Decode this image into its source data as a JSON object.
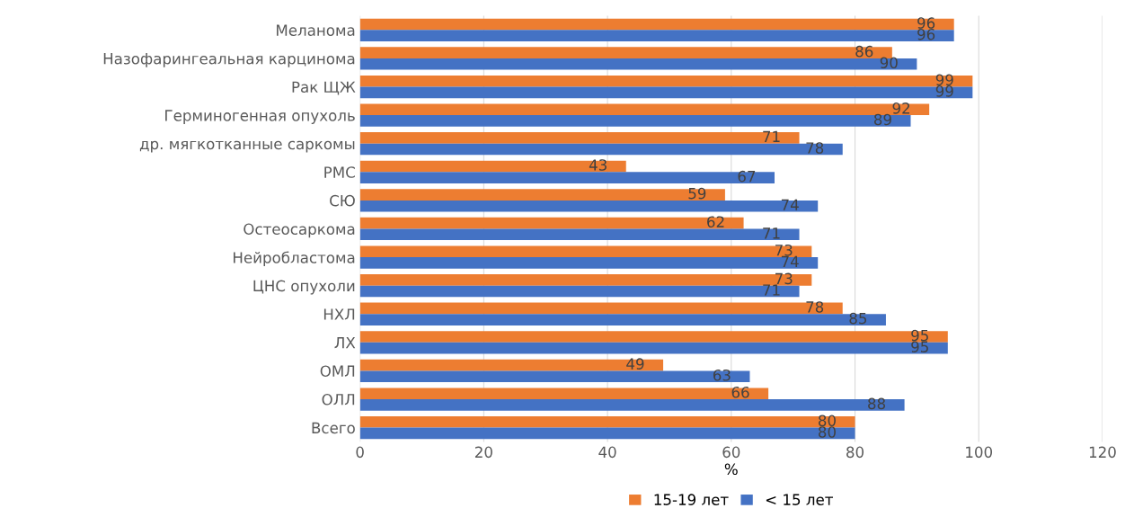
{
  "chart_data": {
    "type": "bar",
    "orientation": "horizontal",
    "xlabel": "%",
    "categories": [
      "Меланома",
      "Назофарингеальная карцинома",
      "Рак ЩЖ",
      "Герминогенная опухоль",
      "др. мягкотканные саркомы",
      "РМС",
      "СЮ",
      "Остеосаркома",
      "Нейробластома",
      "ЦНС опухоли",
      "НХЛ",
      "ЛХ",
      "ОМЛ",
      "ОЛЛ",
      "Всего"
    ],
    "series": [
      {
        "name": "15-19 лет",
        "color": "#ed7d31",
        "values": [
          96,
          86,
          99,
          92,
          71,
          43,
          59,
          62,
          73,
          73,
          78,
          95,
          49,
          66,
          80
        ]
      },
      {
        "name": "< 15 лет",
        "color": "#4472c4",
        "values": [
          96,
          90,
          99,
          89,
          78,
          67,
          74,
          71,
          74,
          71,
          85,
          95,
          63,
          88,
          80
        ]
      }
    ],
    "xlim": [
      0,
      120
    ],
    "xticks": [
      0,
      20,
      40,
      60,
      80,
      100,
      120
    ],
    "grid": "x",
    "legend": "bottom",
    "data_labels": true
  }
}
